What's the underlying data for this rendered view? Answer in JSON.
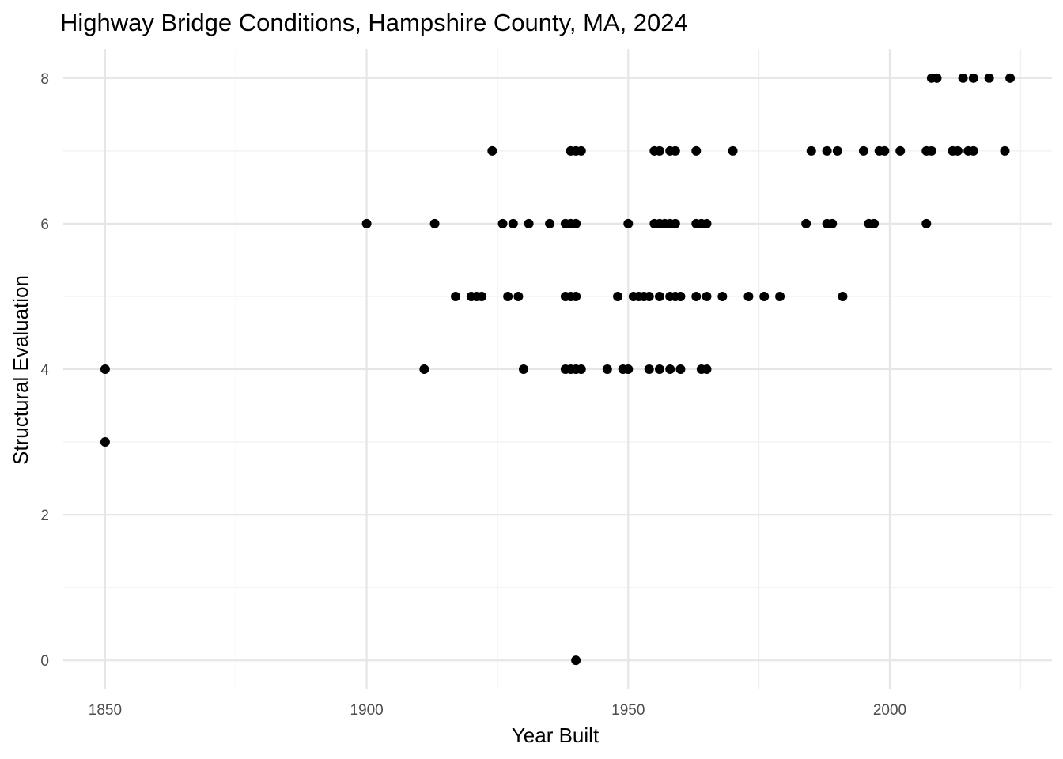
{
  "chart_data": {
    "type": "scatter",
    "title": "Highway Bridge Conditions, Hampshire County, MA, 2024",
    "xlabel": "Year Built",
    "ylabel": "Structural Evaluation",
    "xlim": [
      1842,
      2031
    ],
    "ylim": [
      -0.4,
      8.4
    ],
    "x_ticks": [
      1850,
      1900,
      1950,
      2000
    ],
    "x_minor_ticks": [
      1875,
      1925,
      1975,
      2025
    ],
    "y_ticks": [
      0,
      2,
      4,
      6,
      8
    ],
    "y_minor_ticks": [
      1,
      3,
      5,
      7
    ],
    "grid": true,
    "legend": "none",
    "point_color": "#000000",
    "points": [
      {
        "x": 1850,
        "y": 4
      },
      {
        "x": 1850,
        "y": 3
      },
      {
        "x": 1940,
        "y": 0
      },
      {
        "x": 1911,
        "y": 4
      },
      {
        "x": 1930,
        "y": 4
      },
      {
        "x": 1938,
        "y": 4
      },
      {
        "x": 1939,
        "y": 4
      },
      {
        "x": 1940,
        "y": 4
      },
      {
        "x": 1941,
        "y": 4
      },
      {
        "x": 1946,
        "y": 4
      },
      {
        "x": 1949,
        "y": 4
      },
      {
        "x": 1950,
        "y": 4
      },
      {
        "x": 1954,
        "y": 4
      },
      {
        "x": 1956,
        "y": 4
      },
      {
        "x": 1958,
        "y": 4
      },
      {
        "x": 1960,
        "y": 4
      },
      {
        "x": 1964,
        "y": 4
      },
      {
        "x": 1965,
        "y": 4
      },
      {
        "x": 1917,
        "y": 5
      },
      {
        "x": 1920,
        "y": 5
      },
      {
        "x": 1921,
        "y": 5
      },
      {
        "x": 1922,
        "y": 5
      },
      {
        "x": 1927,
        "y": 5
      },
      {
        "x": 1929,
        "y": 5
      },
      {
        "x": 1938,
        "y": 5
      },
      {
        "x": 1939,
        "y": 5
      },
      {
        "x": 1940,
        "y": 5
      },
      {
        "x": 1948,
        "y": 5
      },
      {
        "x": 1951,
        "y": 5
      },
      {
        "x": 1952,
        "y": 5
      },
      {
        "x": 1953,
        "y": 5
      },
      {
        "x": 1954,
        "y": 5
      },
      {
        "x": 1956,
        "y": 5
      },
      {
        "x": 1958,
        "y": 5
      },
      {
        "x": 1959,
        "y": 5
      },
      {
        "x": 1960,
        "y": 5
      },
      {
        "x": 1963,
        "y": 5
      },
      {
        "x": 1965,
        "y": 5
      },
      {
        "x": 1968,
        "y": 5
      },
      {
        "x": 1973,
        "y": 5
      },
      {
        "x": 1976,
        "y": 5
      },
      {
        "x": 1979,
        "y": 5
      },
      {
        "x": 1991,
        "y": 5
      },
      {
        "x": 1900,
        "y": 6
      },
      {
        "x": 1913,
        "y": 6
      },
      {
        "x": 1926,
        "y": 6
      },
      {
        "x": 1928,
        "y": 6
      },
      {
        "x": 1931,
        "y": 6
      },
      {
        "x": 1935,
        "y": 6
      },
      {
        "x": 1938,
        "y": 6
      },
      {
        "x": 1939,
        "y": 6
      },
      {
        "x": 1940,
        "y": 6
      },
      {
        "x": 1950,
        "y": 6
      },
      {
        "x": 1955,
        "y": 6
      },
      {
        "x": 1956,
        "y": 6
      },
      {
        "x": 1957,
        "y": 6
      },
      {
        "x": 1958,
        "y": 6
      },
      {
        "x": 1959,
        "y": 6
      },
      {
        "x": 1963,
        "y": 6
      },
      {
        "x": 1964,
        "y": 6
      },
      {
        "x": 1965,
        "y": 6
      },
      {
        "x": 1984,
        "y": 6
      },
      {
        "x": 1988,
        "y": 6
      },
      {
        "x": 1989,
        "y": 6
      },
      {
        "x": 1996,
        "y": 6
      },
      {
        "x": 1997,
        "y": 6
      },
      {
        "x": 2007,
        "y": 6
      },
      {
        "x": 1924,
        "y": 7
      },
      {
        "x": 1939,
        "y": 7
      },
      {
        "x": 1940,
        "y": 7
      },
      {
        "x": 1941,
        "y": 7
      },
      {
        "x": 1955,
        "y": 7
      },
      {
        "x": 1956,
        "y": 7
      },
      {
        "x": 1958,
        "y": 7
      },
      {
        "x": 1959,
        "y": 7
      },
      {
        "x": 1963,
        "y": 7
      },
      {
        "x": 1970,
        "y": 7
      },
      {
        "x": 1985,
        "y": 7
      },
      {
        "x": 1988,
        "y": 7
      },
      {
        "x": 1990,
        "y": 7
      },
      {
        "x": 1995,
        "y": 7
      },
      {
        "x": 1998,
        "y": 7
      },
      {
        "x": 1999,
        "y": 7
      },
      {
        "x": 2002,
        "y": 7
      },
      {
        "x": 2007,
        "y": 7
      },
      {
        "x": 2008,
        "y": 7
      },
      {
        "x": 2012,
        "y": 7
      },
      {
        "x": 2013,
        "y": 7
      },
      {
        "x": 2015,
        "y": 7
      },
      {
        "x": 2016,
        "y": 7
      },
      {
        "x": 2022,
        "y": 7
      },
      {
        "x": 2008,
        "y": 8
      },
      {
        "x": 2009,
        "y": 8
      },
      {
        "x": 2014,
        "y": 8
      },
      {
        "x": 2016,
        "y": 8
      },
      {
        "x": 2019,
        "y": 8
      },
      {
        "x": 2023,
        "y": 8
      }
    ]
  }
}
